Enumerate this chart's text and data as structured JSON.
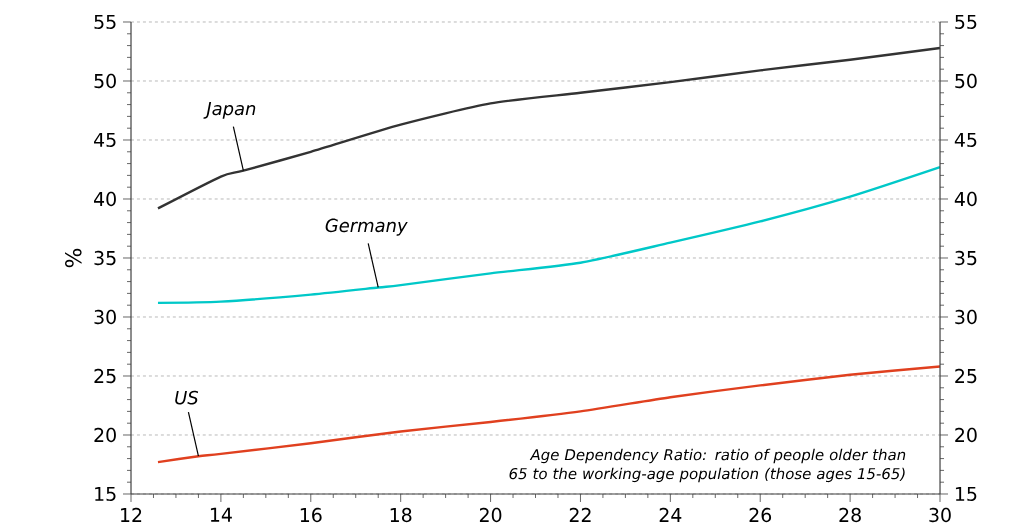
{
  "chart_data": {
    "type": "line",
    "ylabel": "%",
    "xlim": [
      12,
      30
    ],
    "xticks": [
      12,
      14,
      16,
      18,
      20,
      22,
      24,
      26,
      28,
      30
    ],
    "ylim": [
      15,
      55
    ],
    "yticks": [
      15,
      20,
      25,
      30,
      35,
      40,
      45,
      50,
      55
    ],
    "y2lim": [
      15,
      55
    ],
    "y2ticks": [
      15,
      20,
      25,
      30,
      35,
      40,
      45,
      50,
      55
    ],
    "grid": "y",
    "series": [
      {
        "name": "Japan",
        "color": "#333333",
        "x": [
          12.6,
          14,
          14.5,
          16,
          18,
          20,
          22,
          24,
          26,
          28,
          30
        ],
        "values": [
          39.2,
          41.9,
          42.4,
          44.0,
          46.3,
          48.1,
          49.0,
          49.9,
          50.9,
          51.8,
          52.8
        ]
      },
      {
        "name": "Germany",
        "color": "#00c8c8",
        "x": [
          12.6,
          14,
          16,
          17.5,
          18,
          20,
          22,
          24,
          26,
          28,
          30
        ],
        "values": [
          31.2,
          31.3,
          31.9,
          32.5,
          32.7,
          33.7,
          34.6,
          36.3,
          38.1,
          40.2,
          42.7
        ]
      },
      {
        "name": "US",
        "color": "#e0401f",
        "x": [
          12.6,
          13.5,
          14,
          16,
          18,
          20,
          22,
          24,
          26,
          28,
          30
        ],
        "values": [
          17.7,
          18.2,
          18.4,
          19.3,
          20.3,
          21.1,
          22.0,
          23.2,
          24.2,
          25.1,
          25.8
        ]
      }
    ],
    "annotations": [
      "Age Dependency Ratio: ratio of people older than 65 to the working-age population (those ages 15-65)"
    ]
  }
}
